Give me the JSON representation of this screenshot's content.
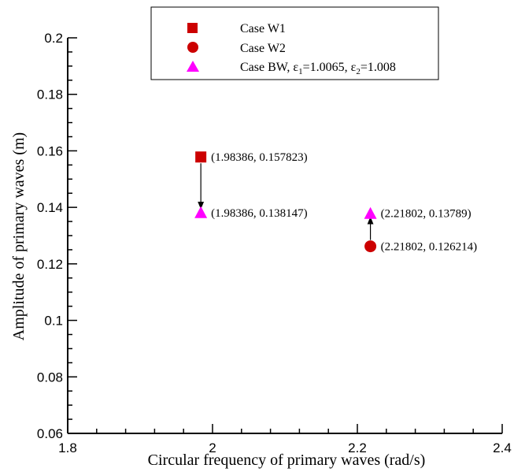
{
  "chart_data": {
    "type": "scatter",
    "title": "",
    "xlabel": "Circular frequency of primary waves (rad/s)",
    "ylabel": "Amplitude of primary waves (m)",
    "xlim": [
      1.8,
      2.4
    ],
    "ylim": [
      0.06,
      0.2
    ],
    "x_ticks": [
      "1.8",
      "2",
      "2.2",
      "2.4"
    ],
    "y_ticks": [
      "0.06",
      "0.08",
      "0.1",
      "0.12",
      "0.14",
      "0.16",
      "0.18",
      "0.2"
    ],
    "grid": false,
    "legend_position": "top-center",
    "series": [
      {
        "name": "Case W1",
        "marker": "square",
        "color": "#cc0000",
        "points": [
          {
            "x": 1.98386,
            "y": 0.157823,
            "label": "(1.98386, 0.157823)"
          }
        ]
      },
      {
        "name": "Case W2",
        "marker": "circle",
        "color": "#cc0000",
        "points": [
          {
            "x": 2.21802,
            "y": 0.126214,
            "label": "(2.21802, 0.126214)"
          }
        ]
      },
      {
        "name": "Case BW, ε1=1.0065, ε2=1.008",
        "legend_parts": {
          "prefix": "Case BW, ε",
          "sub1": "1",
          "mid": "=1.0065, ε",
          "sub2": "2",
          "suffix": "=1.008"
        },
        "marker": "triangle",
        "color": "#ff00ff",
        "points": [
          {
            "x": 1.98386,
            "y": 0.138147,
            "label": "(1.98386, 0.138147)"
          },
          {
            "x": 2.21802,
            "y": 0.13789,
            "label": "(2.21802, 0.13789)"
          }
        ]
      }
    ],
    "annotations": [
      {
        "type": "arrow",
        "from": [
          1.98386,
          0.157823
        ],
        "to": [
          1.98386,
          0.138147
        ]
      },
      {
        "type": "arrow",
        "from": [
          2.21802,
          0.126214
        ],
        "to": [
          2.21802,
          0.13789
        ]
      }
    ]
  }
}
